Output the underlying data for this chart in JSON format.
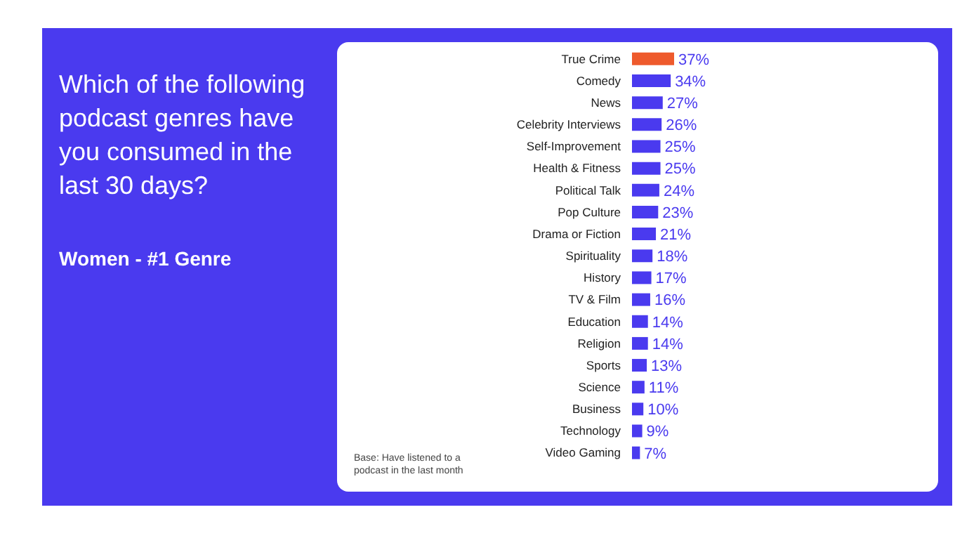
{
  "chart_data": {
    "type": "bar",
    "orientation": "horizontal",
    "title": "Which of the following podcast genres have you consumed in the last 30 days?",
    "subtitle": "Women - #1 Genre",
    "annotations": [
      "Base: Have listened to a podcast in the last month"
    ],
    "categories": [
      "True Crime",
      "Comedy",
      "News",
      "Celebrity Interviews",
      "Self-Improvement",
      "Health & Fitness",
      "Political Talk",
      "Pop Culture",
      "Drama or Fiction",
      "Spirituality",
      "History",
      "TV & Film",
      "Education",
      "Religion",
      "Sports",
      "Science",
      "Business",
      "Technology",
      "Video Gaming"
    ],
    "values": [
      37,
      34,
      27,
      26,
      25,
      25,
      24,
      23,
      21,
      18,
      17,
      16,
      14,
      14,
      13,
      11,
      10,
      9,
      7
    ],
    "value_labels": [
      "37%",
      "34%",
      "27%",
      "26%",
      "25%",
      "25%",
      "24%",
      "23%",
      "21%",
      "18%",
      "17%",
      "16%",
      "14%",
      "14%",
      "13%",
      "11%",
      "10%",
      "9%",
      "7%"
    ],
    "colors": [
      "#ee5a2c",
      "#4a3aef",
      "#4a3aef",
      "#4a3aef",
      "#4a3aef",
      "#4a3aef",
      "#4a3aef",
      "#4a3aef",
      "#4a3aef",
      "#4a3aef",
      "#4a3aef",
      "#4a3aef",
      "#4a3aef",
      "#4a3aef",
      "#4a3aef",
      "#4a3aef",
      "#4a3aef",
      "#4a3aef",
      "#4a3aef"
    ],
    "grid": false
  }
}
